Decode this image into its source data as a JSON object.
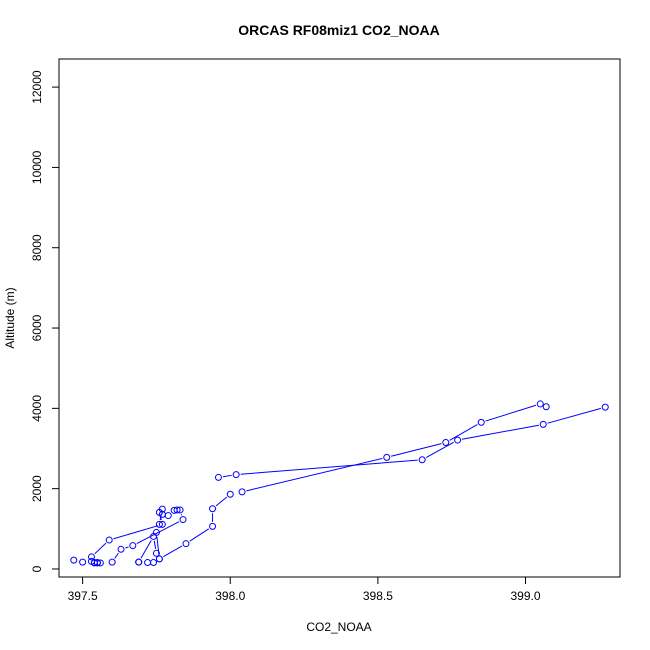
{
  "chart_data": {
    "type": "line",
    "title": "ORCAS RF08miz1 CO2_NOAA",
    "xlabel": "CO2_NOAA",
    "ylabel": "Altitude (m)",
    "xlim": [
      397.42,
      399.32
    ],
    "ylim": [
      -200,
      12700
    ],
    "xticks": [
      "397.5",
      "398.0",
      "398.5",
      "399.0"
    ],
    "yticks": [
      "0",
      "2000",
      "4000",
      "6000",
      "8000",
      "10000",
      "12000"
    ],
    "series_color": "#0000ff",
    "marker": "open-circle",
    "series": [
      {
        "x": [
          399.27,
          399.06,
          398.77,
          398.65,
          398.02,
          397.96
        ],
        "y": [
          4030,
          3600,
          3210,
          2720,
          2350,
          2280
        ]
      },
      {
        "x": [
          398.04,
          398.53,
          398.73,
          398.85,
          399.05,
          399.07
        ],
        "y": [
          1920,
          2780,
          3150,
          3650,
          4110,
          4040
        ]
      },
      {
        "x": [
          398.0,
          397.94,
          397.94,
          397.85,
          397.76,
          397.75,
          397.74,
          397.69,
          397.69
        ],
        "y": [
          1860,
          1500,
          1060,
          630,
          250,
          390,
          810,
          170,
          170
        ]
      },
      {
        "x": [
          397.72,
          397.74,
          397.76,
          397.75,
          397.76,
          397.77,
          397.79,
          397.81,
          397.82,
          397.83,
          397.84,
          397.67,
          397.63,
          397.6
        ],
        "y": [
          160,
          160,
          250,
          910,
          1110,
          1490,
          1330,
          1460,
          1470,
          1470,
          1230,
          580,
          490,
          170
        ]
      },
      {
        "x": [
          397.47,
          397.5,
          397.53,
          397.54,
          397.54,
          397.55,
          397.56,
          397.55,
          397.53,
          397.59,
          397.77,
          397.76,
          397.77
        ],
        "y": [
          220,
          170,
          190,
          150,
          160,
          150,
          150,
          160,
          300,
          720,
          1110,
          1410,
          1360
        ]
      }
    ]
  }
}
